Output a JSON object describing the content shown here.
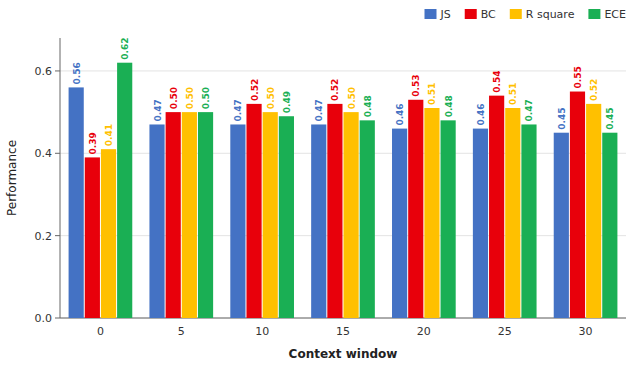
{
  "chart_data": {
    "type": "bar",
    "xlabel": "Context window",
    "ylabel": "Performance",
    "categories": [
      "0",
      "5",
      "10",
      "15",
      "20",
      "25",
      "30"
    ],
    "series": [
      {
        "name": "JS",
        "color": "#4472C4",
        "values": [
          0.56,
          0.47,
          0.47,
          0.47,
          0.46,
          0.46,
          0.45
        ],
        "value_labels": [
          "0.56",
          "0.47",
          "0.47",
          "0.47",
          "0.46",
          "0.46",
          "0.45"
        ]
      },
      {
        "name": "BC",
        "color": "#E8000B",
        "values": [
          0.39,
          0.5,
          0.52,
          0.52,
          0.53,
          0.54,
          0.55
        ],
        "value_labels": [
          "0.39",
          "0.50",
          "0.52",
          "0.52",
          "0.53",
          "0.54",
          "0.55"
        ]
      },
      {
        "name": "R square",
        "color": "#FFC000",
        "values": [
          0.41,
          0.5,
          0.5,
          0.5,
          0.51,
          0.51,
          0.52
        ],
        "value_labels": [
          "0.41",
          "0.50",
          "0.50",
          "0.50",
          "0.51",
          "0.51",
          "0.52"
        ]
      },
      {
        "name": "ECE",
        "color": "#1AAF54",
        "values": [
          0.62,
          0.5,
          0.49,
          0.48,
          0.48,
          0.47,
          0.45
        ],
        "value_labels": [
          "0.62",
          "0.50",
          "0.49",
          "0.48",
          "0.48",
          "0.47",
          "0.45"
        ]
      }
    ],
    "ylim": [
      0.0,
      0.68
    ],
    "yticks": [
      {
        "value": 0.0,
        "label": "0.0"
      },
      0.2,
      0.4,
      0.6
    ],
    "grid": true,
    "legend": "top right",
    "data_labels": true
  }
}
